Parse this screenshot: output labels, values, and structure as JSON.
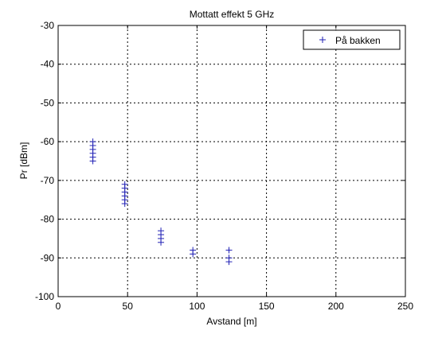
{
  "chart_data": {
    "type": "scatter",
    "title": "Mottatt effekt 5 GHz",
    "xlabel": "Avstand [m]",
    "ylabel": "Pr [dBm]",
    "xlim": [
      0,
      250
    ],
    "ylim": [
      -100,
      -30
    ],
    "xticks": [
      0,
      50,
      100,
      150,
      200,
      250
    ],
    "yticks": [
      -100,
      -90,
      -80,
      -70,
      -60,
      -50,
      -40,
      -30
    ],
    "grid": true,
    "legend_position": "top-right",
    "series": [
      {
        "name": "På bakken",
        "color": "#1f1fb4",
        "marker": "plus",
        "points": [
          {
            "x": 25,
            "y": -60
          },
          {
            "x": 25,
            "y": -61
          },
          {
            "x": 25,
            "y": -62
          },
          {
            "x": 25,
            "y": -63
          },
          {
            "x": 25,
            "y": -64
          },
          {
            "x": 25,
            "y": -65
          },
          {
            "x": 48,
            "y": -71
          },
          {
            "x": 48,
            "y": -72
          },
          {
            "x": 48,
            "y": -73
          },
          {
            "x": 48,
            "y": -74
          },
          {
            "x": 48,
            "y": -75
          },
          {
            "x": 48,
            "y": -76
          },
          {
            "x": 74,
            "y": -83
          },
          {
            "x": 74,
            "y": -84
          },
          {
            "x": 74,
            "y": -85
          },
          {
            "x": 74,
            "y": -86
          },
          {
            "x": 97,
            "y": -88
          },
          {
            "x": 97,
            "y": -89
          },
          {
            "x": 123,
            "y": -88
          },
          {
            "x": 123,
            "y": -90
          },
          {
            "x": 123,
            "y": -91
          }
        ]
      }
    ]
  }
}
